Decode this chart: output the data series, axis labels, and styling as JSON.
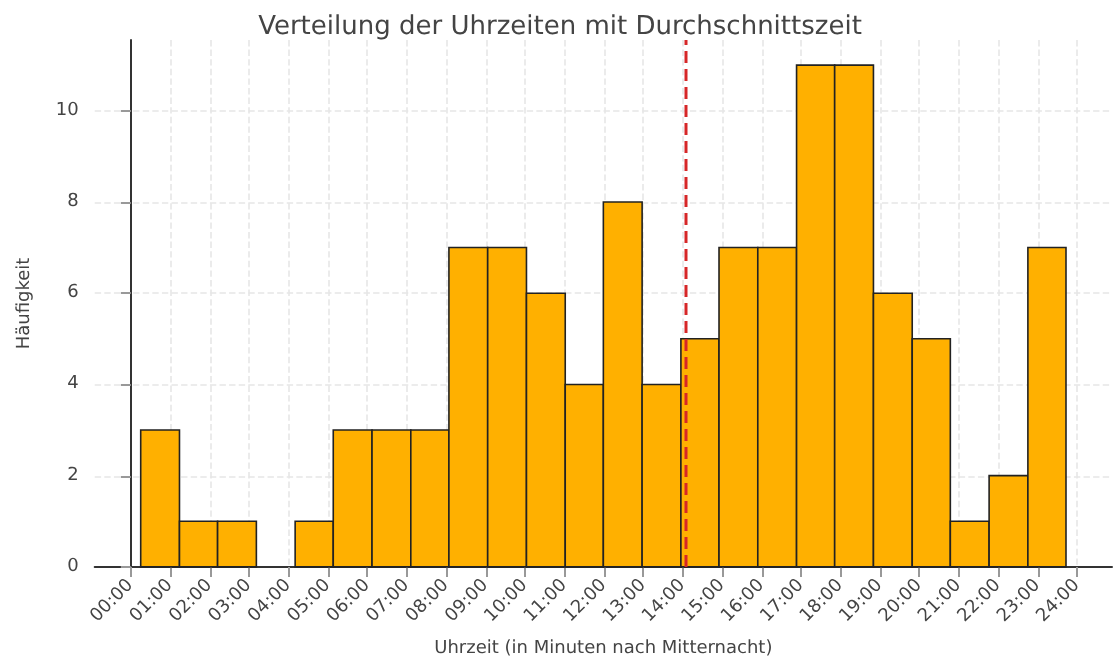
{
  "chart_data": {
    "type": "histogram",
    "title": "Verteilung der Uhrzeiten mit Durchschnittszeit",
    "xlabel": "Uhrzeit (in Minuten nach Mitternacht)",
    "ylabel": "Häufigkeit",
    "bins": [
      15,
      74,
      132,
      191,
      250,
      308,
      367,
      426,
      484,
      543,
      602,
      661,
      719,
      778,
      837,
      895,
      954,
      1013,
      1071,
      1130,
      1189,
      1247,
      1306,
      1365,
      1423
    ],
    "values": [
      3,
      1,
      1,
      0,
      1,
      3,
      3,
      3,
      7,
      7,
      6,
      4,
      8,
      4,
      5,
      7,
      7,
      11,
      11,
      6,
      5,
      1,
      2,
      7
    ],
    "color": "#ffb000",
    "xlim": [
      -55,
      1493
    ],
    "xticks": [
      {
        "value": 0,
        "label": "00:00"
      },
      {
        "value": 60,
        "label": "01:00"
      },
      {
        "value": 120,
        "label": "02:00"
      },
      {
        "value": 180,
        "label": "03:00"
      },
      {
        "value": 240,
        "label": "04:00"
      },
      {
        "value": 300,
        "label": "05:00"
      },
      {
        "value": 360,
        "label": "06:00"
      },
      {
        "value": 420,
        "label": "07:00"
      },
      {
        "value": 480,
        "label": "08:00"
      },
      {
        "value": 540,
        "label": "09:00"
      },
      {
        "value": 600,
        "label": "10:00"
      },
      {
        "value": 660,
        "label": "11:00"
      },
      {
        "value": 720,
        "label": "12:00"
      },
      {
        "value": 780,
        "label": "13:00"
      },
      {
        "value": 840,
        "label": "14:00"
      },
      {
        "value": 900,
        "label": "15:00"
      },
      {
        "value": 960,
        "label": "16:00"
      },
      {
        "value": 1020,
        "label": "17:00"
      },
      {
        "value": 1080,
        "label": "18:00"
      },
      {
        "value": 1140,
        "label": "19:00"
      },
      {
        "value": 1200,
        "label": "20:00"
      },
      {
        "value": 1260,
        "label": "21:00"
      },
      {
        "value": 1320,
        "label": "22:00"
      },
      {
        "value": 1380,
        "label": "23:00"
      },
      {
        "value": 1440,
        "label": "24:00"
      }
    ],
    "ylim": [
      0,
      11.55
    ],
    "yticks": [
      0,
      2,
      4,
      6,
      8,
      10
    ],
    "ref_lines": [
      {
        "axis": "x",
        "value": 844,
        "color": "#d62728",
        "line_style": "dashed"
      }
    ],
    "grid": true
  }
}
